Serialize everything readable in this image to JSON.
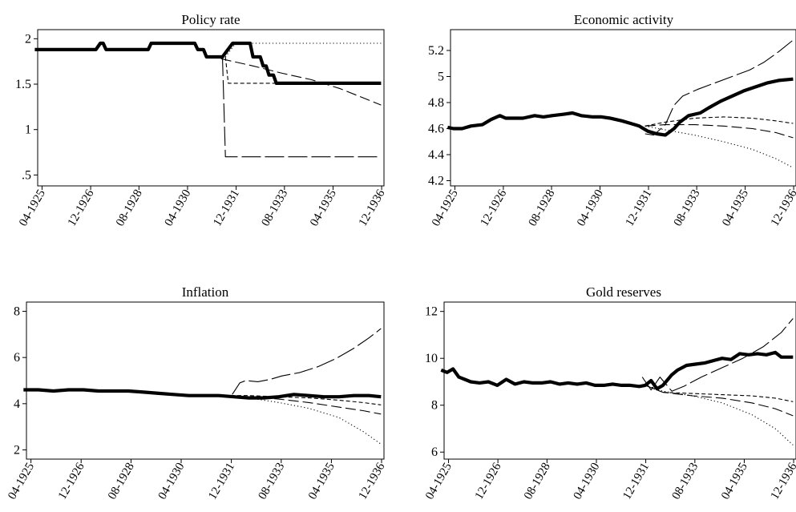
{
  "chart_data": [
    {
      "type": "line",
      "title": "Policy rate",
      "xlabel": "",
      "ylabel": "",
      "xlim": [
        1925.1,
        1937.0
      ],
      "ylim": [
        0.38,
        2.1
      ],
      "yticks": [
        0.5,
        1,
        1.5,
        2
      ],
      "ytick_labels": [
        ".5",
        "1",
        "1.5",
        "2"
      ],
      "xticks": [
        1925.25,
        1926.92,
        1928.58,
        1930.25,
        1931.92,
        1933.58,
        1935.25,
        1936.92
      ],
      "xtick_labels": [
        "04-1925",
        "12-1926",
        "08-1928",
        "04-1930",
        "12-1931",
        "08-1933",
        "04-1935",
        "12-1936"
      ],
      "series": [
        {
          "style": "solid",
          "x": [
            1925.0,
            1927.0,
            1927.1,
            1927.25,
            1927.35,
            1927.45,
            1928.9,
            1929.0,
            1929.9,
            1930.0,
            1930.5,
            1930.6,
            1930.8,
            1930.9,
            1931.35,
            1931.45,
            1931.8,
            1931.9,
            1932.4,
            1932.5,
            1932.75,
            1932.85,
            1932.95,
            1933.05,
            1933.2,
            1933.3,
            1936.9
          ],
          "y": [
            1.88,
            1.88,
            1.88,
            1.95,
            1.95,
            1.88,
            1.88,
            1.95,
            1.95,
            1.95,
            1.95,
            1.88,
            1.88,
            1.8,
            1.8,
            1.8,
            1.95,
            1.95,
            1.95,
            1.8,
            1.8,
            1.7,
            1.7,
            1.6,
            1.6,
            1.51,
            1.51
          ]
        },
        {
          "style": "dotted",
          "x": [
            1931.55,
            1931.9,
            1936.9
          ],
          "y": [
            1.8,
            1.95,
            1.95
          ]
        },
        {
          "style": "short-dash",
          "x": [
            1931.55,
            1931.65,
            1936.9
          ],
          "y": [
            1.8,
            1.51,
            1.51
          ]
        },
        {
          "style": "medium-dash",
          "x": [
            1931.4,
            1932.5,
            1933.5,
            1934.5,
            1935.5,
            1936.2,
            1936.9
          ],
          "y": [
            1.78,
            1.7,
            1.62,
            1.55,
            1.45,
            1.36,
            1.27
          ]
        },
        {
          "style": "long-dash",
          "x": [
            1931.45,
            1931.55,
            1936.9
          ],
          "y": [
            1.8,
            0.7,
            0.7
          ]
        }
      ]
    },
    {
      "type": "line",
      "title": "Economic activity",
      "xlabel": "",
      "ylabel": "",
      "xlim": [
        1925.1,
        1937.0
      ],
      "ylim": [
        4.16,
        5.36
      ],
      "yticks": [
        4.2,
        4.4,
        4.6,
        4.8,
        5,
        5.2
      ],
      "ytick_labels": [
        "4.2",
        "4.4",
        "4.6",
        "4.8",
        "5",
        "5.2"
      ],
      "xticks": [
        1925.25,
        1926.92,
        1928.58,
        1930.25,
        1931.92,
        1933.58,
        1935.25,
        1936.92
      ],
      "xtick_labels": [
        "04-1925",
        "12-1926",
        "08-1928",
        "04-1930",
        "12-1931",
        "08-1933",
        "04-1935",
        "12-1936"
      ],
      "series": [
        {
          "style": "solid",
          "x": [
            1925.0,
            1925.2,
            1925.5,
            1925.8,
            1926.2,
            1926.5,
            1926.8,
            1927.0,
            1927.3,
            1927.6,
            1928.0,
            1928.3,
            1928.6,
            1929.0,
            1929.3,
            1929.6,
            1930.0,
            1930.3,
            1930.6,
            1931.0,
            1931.3,
            1931.6,
            1931.9,
            1932.2,
            1932.5,
            1932.8,
            1933.0,
            1933.3,
            1933.7,
            1934.0,
            1934.4,
            1934.8,
            1935.2,
            1935.6,
            1936.0,
            1936.4,
            1936.9
          ],
          "y": [
            4.61,
            4.6,
            4.6,
            4.62,
            4.63,
            4.67,
            4.7,
            4.68,
            4.68,
            4.68,
            4.7,
            4.69,
            4.7,
            4.71,
            4.72,
            4.7,
            4.69,
            4.69,
            4.68,
            4.66,
            4.64,
            4.62,
            4.58,
            4.56,
            4.55,
            4.6,
            4.65,
            4.7,
            4.72,
            4.76,
            4.81,
            4.85,
            4.89,
            4.92,
            4.95,
            4.97,
            4.98
          ]
        },
        {
          "style": "dotted",
          "x": [
            1931.8,
            1932.5,
            1933.5,
            1934.5,
            1935.5,
            1936.3,
            1936.9
          ],
          "y": [
            4.62,
            4.59,
            4.55,
            4.5,
            4.44,
            4.37,
            4.3
          ]
        },
        {
          "style": "short-dash",
          "x": [
            1931.8,
            1932.5,
            1933.5,
            1934.5,
            1935.5,
            1936.3,
            1936.9
          ],
          "y": [
            4.62,
            4.65,
            4.68,
            4.69,
            4.68,
            4.66,
            4.64
          ]
        },
        {
          "style": "medium-dash",
          "x": [
            1931.8,
            1932.5,
            1933.5,
            1934.5,
            1935.5,
            1936.3,
            1936.9
          ],
          "y": [
            4.62,
            4.63,
            4.63,
            4.62,
            4.6,
            4.57,
            4.53
          ]
        },
        {
          "style": "long-dash",
          "x": [
            1931.8,
            1932.1,
            1932.5,
            1932.8,
            1933.1,
            1933.6,
            1934.2,
            1934.8,
            1935.4,
            1935.9,
            1936.4,
            1936.9
          ],
          "y": [
            4.56,
            4.55,
            4.63,
            4.78,
            4.85,
            4.9,
            4.95,
            5.0,
            5.05,
            5.11,
            5.19,
            5.28
          ]
        }
      ]
    },
    {
      "type": "line",
      "title": "Inflation",
      "xlabel": "",
      "ylabel": "",
      "xlim": [
        1925.1,
        1937.0
      ],
      "ylim": [
        1.6,
        8.4
      ],
      "yticks": [
        2,
        4,
        6,
        8
      ],
      "ytick_labels": [
        "2",
        "4",
        "6",
        "8"
      ],
      "xticks": [
        1925.25,
        1926.92,
        1928.58,
        1930.25,
        1931.92,
        1933.58,
        1935.25,
        1936.92
      ],
      "xtick_labels": [
        "04-1925",
        "12-1926",
        "08-1928",
        "04-1930",
        "12-1931",
        "08-1933",
        "04-1935",
        "12-1936"
      ],
      "series": [
        {
          "style": "solid",
          "x": [
            1925.0,
            1925.5,
            1926.0,
            1926.5,
            1927.0,
            1927.5,
            1928.0,
            1928.5,
            1929.0,
            1929.5,
            1930.0,
            1930.5,
            1931.0,
            1931.5,
            1932.0,
            1932.5,
            1933.0,
            1933.5,
            1934.0,
            1934.5,
            1935.0,
            1935.5,
            1936.0,
            1936.5,
            1936.9
          ],
          "y": [
            4.6,
            4.6,
            4.55,
            4.6,
            4.6,
            4.55,
            4.55,
            4.55,
            4.5,
            4.45,
            4.4,
            4.35,
            4.35,
            4.35,
            4.3,
            4.25,
            4.25,
            4.3,
            4.4,
            4.35,
            4.3,
            4.3,
            4.35,
            4.35,
            4.3
          ]
        },
        {
          "style": "dotted",
          "x": [
            1931.9,
            1932.5,
            1933.5,
            1934.5,
            1935.5,
            1936.3,
            1936.9
          ],
          "y": [
            4.3,
            4.25,
            4.05,
            3.8,
            3.4,
            2.8,
            2.25
          ]
        },
        {
          "style": "short-dash",
          "x": [
            1931.9,
            1932.5,
            1933.5,
            1934.5,
            1935.5,
            1936.3,
            1936.9
          ],
          "y": [
            4.35,
            4.35,
            4.3,
            4.25,
            4.15,
            4.05,
            3.95
          ]
        },
        {
          "style": "medium-dash",
          "x": [
            1931.9,
            1932.5,
            1933.5,
            1934.5,
            1935.5,
            1936.3,
            1936.9
          ],
          "y": [
            4.35,
            4.3,
            4.2,
            4.05,
            3.85,
            3.7,
            3.55
          ]
        },
        {
          "style": "long-dash",
          "x": [
            1931.95,
            1932.2,
            1932.4,
            1932.8,
            1933.2,
            1933.6,
            1934.2,
            1934.8,
            1935.4,
            1936.0,
            1936.5,
            1936.9
          ],
          "y": [
            4.4,
            4.9,
            5.0,
            4.95,
            5.05,
            5.2,
            5.35,
            5.6,
            5.95,
            6.4,
            6.85,
            7.25
          ]
        }
      ]
    },
    {
      "type": "line",
      "title": "Gold reserves",
      "xlabel": "",
      "ylabel": "",
      "xlim": [
        1925.1,
        1937.0
      ],
      "ylim": [
        5.7,
        12.4
      ],
      "yticks": [
        6,
        8,
        10,
        12
      ],
      "ytick_labels": [
        "6",
        "8",
        "10",
        "12"
      ],
      "xticks": [
        1925.25,
        1926.92,
        1928.58,
        1930.25,
        1931.92,
        1933.58,
        1935.25,
        1936.92
      ],
      "xtick_labels": [
        "04-1925",
        "12-1926",
        "08-1928",
        "04-1930",
        "12-1931",
        "08-1933",
        "04-1935",
        "12-1936"
      ],
      "series": [
        {
          "style": "solid",
          "x": [
            1925.0,
            1925.2,
            1925.4,
            1925.6,
            1925.8,
            1926.0,
            1926.3,
            1926.6,
            1926.9,
            1927.2,
            1927.5,
            1927.8,
            1928.1,
            1928.4,
            1928.7,
            1929.0,
            1929.3,
            1929.6,
            1929.9,
            1930.2,
            1930.5,
            1930.8,
            1931.1,
            1931.4,
            1931.7,
            1931.9,
            1932.1,
            1932.3,
            1932.5,
            1932.8,
            1933.0,
            1933.3,
            1933.6,
            1933.9,
            1934.2,
            1934.5,
            1934.8,
            1935.1,
            1935.4,
            1935.7,
            1936.0,
            1936.3,
            1936.5,
            1936.9
          ],
          "y": [
            9.5,
            9.4,
            9.55,
            9.2,
            9.1,
            9.0,
            8.95,
            9.0,
            8.85,
            9.1,
            8.9,
            9.0,
            8.95,
            8.95,
            9.0,
            8.9,
            8.95,
            8.9,
            8.95,
            8.85,
            8.85,
            8.9,
            8.85,
            8.85,
            8.8,
            8.85,
            9.05,
            8.7,
            8.85,
            9.3,
            9.5,
            9.7,
            9.75,
            9.8,
            9.9,
            10.0,
            9.95,
            10.2,
            10.15,
            10.2,
            10.15,
            10.25,
            10.05,
            10.05
          ]
        },
        {
          "style": "dotted",
          "x": [
            1931.9,
            1932.5,
            1933.5,
            1934.5,
            1935.5,
            1936.3,
            1936.9
          ],
          "y": [
            8.85,
            8.6,
            8.4,
            8.1,
            7.6,
            7.0,
            6.3
          ]
        },
        {
          "style": "short-dash",
          "x": [
            1931.9,
            1932.5,
            1933.5,
            1934.5,
            1935.5,
            1936.3,
            1936.9
          ],
          "y": [
            8.85,
            8.55,
            8.5,
            8.45,
            8.4,
            8.3,
            8.15
          ]
        },
        {
          "style": "medium-dash",
          "x": [
            1931.9,
            1932.5,
            1933.5,
            1934.5,
            1935.5,
            1936.3,
            1936.9
          ],
          "y": [
            8.85,
            8.55,
            8.4,
            8.3,
            8.1,
            7.85,
            7.55
          ]
        },
        {
          "style": "long-dash",
          "x": [
            1931.8,
            1932.1,
            1932.4,
            1932.8,
            1933.2,
            1933.8,
            1934.5,
            1935.2,
            1935.9,
            1936.5,
            1936.9
          ],
          "y": [
            9.2,
            8.65,
            9.2,
            8.6,
            8.8,
            9.2,
            9.6,
            10.0,
            10.5,
            11.1,
            11.7
          ]
        }
      ]
    }
  ]
}
